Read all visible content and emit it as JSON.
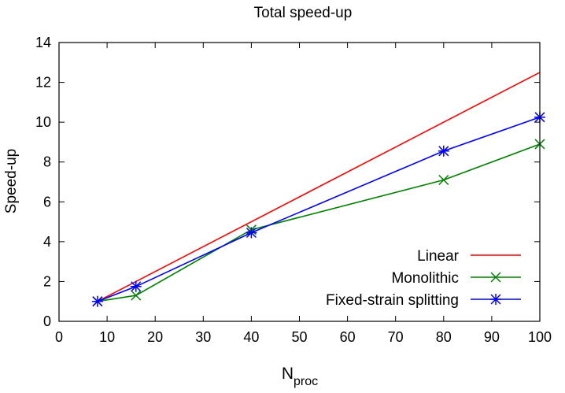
{
  "chart_data": {
    "type": "line",
    "title": "Total speed-up",
    "xlabel": "N",
    "xlabel_subscript": "proc",
    "ylabel": "Speed-up",
    "xlim": [
      0,
      100
    ],
    "ylim": [
      0,
      14
    ],
    "xticks": [
      0,
      10,
      20,
      30,
      40,
      50,
      60,
      70,
      80,
      90,
      100
    ],
    "yticks": [
      0,
      2,
      4,
      6,
      8,
      10,
      12,
      14
    ],
    "grid": false,
    "legend_position": "bottom-right",
    "series": [
      {
        "name": "Linear",
        "color": "#ff0000",
        "marker": "none",
        "x": [
          8,
          100
        ],
        "y": [
          1,
          12.5
        ]
      },
      {
        "name": "Monolithic",
        "color": "#008000",
        "marker": "x",
        "x": [
          8,
          16,
          40,
          80,
          100
        ],
        "y": [
          1.0,
          1.3,
          4.6,
          7.1,
          8.9
        ]
      },
      {
        "name": "Fixed-strain splitting",
        "color": "#0000ff",
        "marker": "asterisk",
        "x": [
          8,
          16,
          40,
          80,
          100
        ],
        "y": [
          1.0,
          1.75,
          4.45,
          8.55,
          10.25
        ]
      }
    ]
  }
}
